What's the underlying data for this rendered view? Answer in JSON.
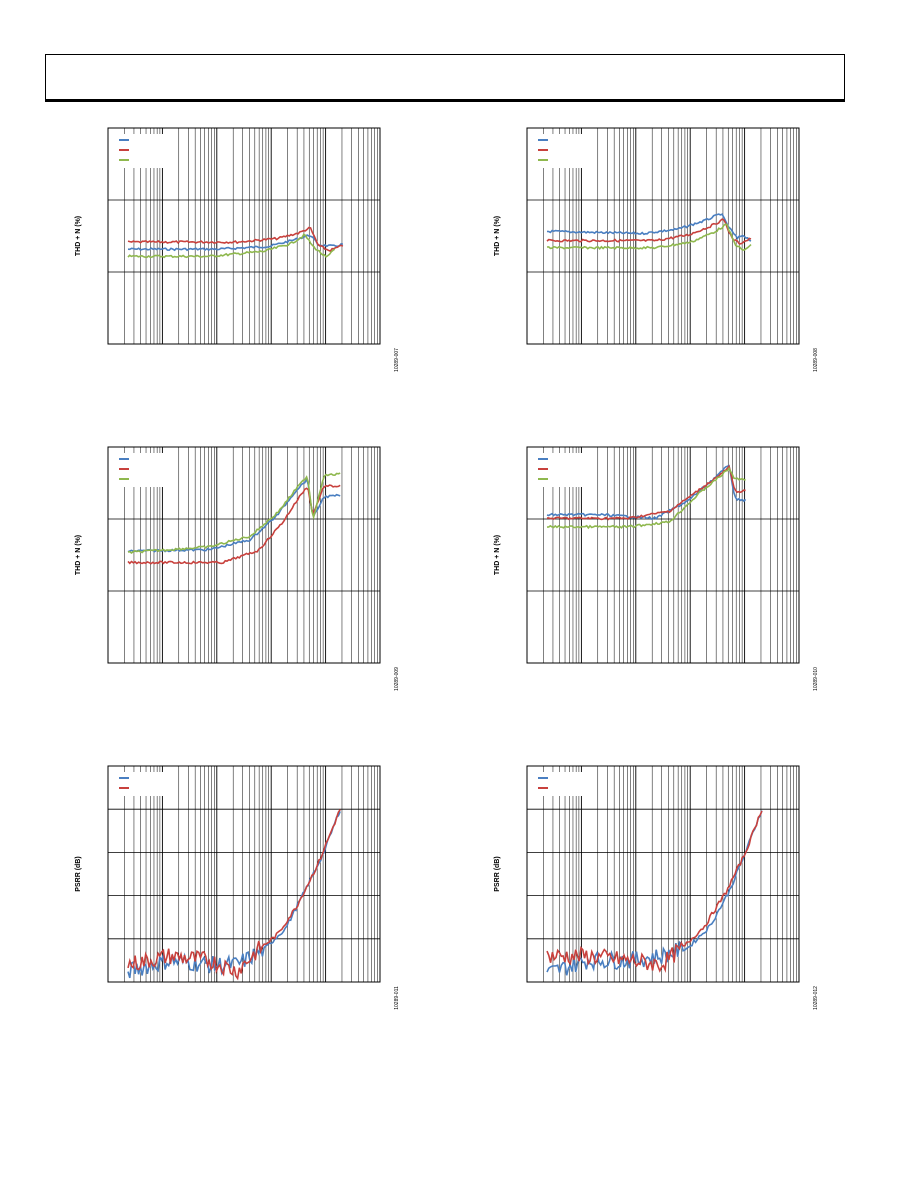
{
  "header": {
    "text": ""
  },
  "colors": {
    "series1": "#4a7fc1",
    "series2": "#c8413d",
    "series3": "#8fb84e",
    "grid": "#000000"
  },
  "chart_data": [
    {
      "id": "fig-007",
      "type": "line",
      "xscale": "log",
      "yscale": "log",
      "ylabel": "THD + N (%)",
      "figure_id": "10289-007",
      "legend": "top-left",
      "series": [
        {
          "values_note": "flat then rising",
          "points": [
            [
              0.0,
              0.7
            ],
            [
              0.33,
              0.7
            ],
            [
              0.52,
              0.66
            ],
            [
              0.62,
              0.56
            ],
            [
              0.67,
              0.5
            ],
            [
              0.7,
              0.64
            ],
            [
              0.76,
              0.66
            ],
            [
              0.79,
              0.63
            ]
          ]
        },
        {
          "points": [
            [
              0.0,
              0.6
            ],
            [
              0.4,
              0.6
            ],
            [
              0.55,
              0.55
            ],
            [
              0.63,
              0.47
            ],
            [
              0.67,
              0.4
            ],
            [
              0.7,
              0.65
            ],
            [
              0.74,
              0.72
            ],
            [
              0.79,
              0.65
            ]
          ]
        },
        {
          "points": [
            [
              0.0,
              0.8
            ],
            [
              0.3,
              0.8
            ],
            [
              0.5,
              0.73
            ],
            [
              0.6,
              0.62
            ],
            [
              0.65,
              0.5
            ],
            [
              0.68,
              0.66
            ],
            [
              0.73,
              0.82
            ],
            [
              0.76,
              0.7
            ]
          ]
        }
      ]
    },
    {
      "id": "fig-008",
      "type": "line",
      "xscale": "log",
      "yscale": "log",
      "ylabel": "THD + N (%)",
      "figure_id": "10289-008",
      "legend": "top-left",
      "series": [
        {
          "points": [
            [
              0.0,
              0.45
            ],
            [
              0.35,
              0.48
            ],
            [
              0.48,
              0.42
            ],
            [
              0.58,
              0.3
            ],
            [
              0.64,
              0.2
            ],
            [
              0.67,
              0.4
            ],
            [
              0.7,
              0.55
            ],
            [
              0.72,
              0.5
            ],
            [
              0.75,
              0.58
            ]
          ]
        },
        {
          "points": [
            [
              0.0,
              0.58
            ],
            [
              0.4,
              0.58
            ],
            [
              0.52,
              0.5
            ],
            [
              0.6,
              0.38
            ],
            [
              0.65,
              0.28
            ],
            [
              0.68,
              0.55
            ],
            [
              0.71,
              0.62
            ],
            [
              0.75,
              0.55
            ]
          ]
        },
        {
          "points": [
            [
              0.0,
              0.68
            ],
            [
              0.4,
              0.68
            ],
            [
              0.53,
              0.6
            ],
            [
              0.62,
              0.45
            ],
            [
              0.66,
              0.35
            ],
            [
              0.69,
              0.62
            ],
            [
              0.72,
              0.72
            ],
            [
              0.75,
              0.65
            ]
          ]
        }
      ]
    },
    {
      "id": "fig-009",
      "type": "line",
      "xscale": "log",
      "yscale": "log",
      "ylabel": "THD + N (%)",
      "figure_id": "10289-009",
      "legend": "top-left",
      "series": [
        {
          "points": [
            [
              0.0,
              0.46
            ],
            [
              0.3,
              0.44
            ],
            [
              0.45,
              0.3
            ],
            [
              0.55,
              -0.05
            ],
            [
              0.62,
              -0.4
            ],
            [
              0.66,
              -0.55
            ],
            [
              0.68,
              0.0
            ],
            [
              0.72,
              -0.3
            ],
            [
              0.78,
              -0.32
            ]
          ]
        },
        {
          "points": [
            [
              0.0,
              0.62
            ],
            [
              0.35,
              0.62
            ],
            [
              0.48,
              0.45
            ],
            [
              0.57,
              0.05
            ],
            [
              0.63,
              -0.3
            ],
            [
              0.66,
              -0.45
            ],
            [
              0.68,
              -0.05
            ],
            [
              0.72,
              -0.45
            ],
            [
              0.78,
              -0.45
            ]
          ]
        },
        {
          "points": [
            [
              0.0,
              0.48
            ],
            [
              0.3,
              0.4
            ],
            [
              0.45,
              0.25
            ],
            [
              0.55,
              -0.08
            ],
            [
              0.62,
              -0.42
            ],
            [
              0.66,
              -0.6
            ],
            [
              0.68,
              0.02
            ],
            [
              0.72,
              -0.6
            ],
            [
              0.78,
              -0.62
            ]
          ]
        }
      ]
    },
    {
      "id": "fig-010",
      "type": "line",
      "xscale": "log",
      "yscale": "log",
      "ylabel": "THD + N (%)",
      "figure_id": "10289-010",
      "legend": "top-left",
      "series": [
        {
          "points": [
            [
              0.0,
              -0.05
            ],
            [
              0.2,
              -0.05
            ],
            [
              0.4,
              0.0
            ],
            [
              0.52,
              -0.25
            ],
            [
              0.62,
              -0.58
            ],
            [
              0.67,
              -0.75
            ],
            [
              0.69,
              -0.28
            ],
            [
              0.73,
              -0.25
            ]
          ]
        },
        {
          "points": [
            [
              0.0,
              0.0
            ],
            [
              0.3,
              0.0
            ],
            [
              0.45,
              -0.1
            ],
            [
              0.56,
              -0.4
            ],
            [
              0.64,
              -0.62
            ],
            [
              0.67,
              -0.72
            ],
            [
              0.69,
              -0.38
            ],
            [
              0.73,
              -0.38
            ]
          ]
        },
        {
          "points": [
            [
              0.0,
              0.12
            ],
            [
              0.3,
              0.12
            ],
            [
              0.45,
              0.05
            ],
            [
              0.56,
              -0.35
            ],
            [
              0.64,
              -0.6
            ],
            [
              0.67,
              -0.7
            ],
            [
              0.69,
              -0.55
            ],
            [
              0.73,
              -0.55
            ]
          ]
        }
      ]
    },
    {
      "id": "fig-011",
      "type": "line",
      "xscale": "log",
      "ylabel": "PSRR (dB)",
      "figure_id": "10289-011",
      "legend": "top-left",
      "series": [
        {
          "points": [
            [
              0.0,
              -95
            ],
            [
              0.15,
              -90
            ],
            [
              0.3,
              -92
            ],
            [
              0.4,
              -92
            ],
            [
              0.5,
              -85
            ],
            [
              0.58,
              -75
            ],
            [
              0.65,
              -58
            ],
            [
              0.72,
              -40
            ],
            [
              0.78,
              -20
            ]
          ]
        },
        {
          "points": [
            [
              0.0,
              -92
            ],
            [
              0.15,
              -88
            ],
            [
              0.3,
              -90
            ],
            [
              0.4,
              -95
            ],
            [
              0.48,
              -85
            ],
            [
              0.55,
              -78
            ],
            [
              0.62,
              -65
            ],
            [
              0.7,
              -45
            ],
            [
              0.78,
              -20
            ]
          ]
        }
      ]
    },
    {
      "id": "fig-012",
      "type": "line",
      "xscale": "log",
      "ylabel": "PSRR (dB)",
      "figure_id": "10289-012",
      "legend": "top-left",
      "series": [
        {
          "points": [
            [
              0.0,
              -96
            ],
            [
              0.15,
              -90
            ],
            [
              0.3,
              -90
            ],
            [
              0.42,
              -88
            ],
            [
              0.52,
              -84
            ],
            [
              0.6,
              -74
            ],
            [
              0.67,
              -58
            ],
            [
              0.73,
              -40
            ],
            [
              0.79,
              -20
            ]
          ]
        },
        {
          "points": [
            [
              0.0,
              -88
            ],
            [
              0.15,
              -88
            ],
            [
              0.3,
              -90
            ],
            [
              0.42,
              -92
            ],
            [
              0.5,
              -84
            ],
            [
              0.58,
              -74
            ],
            [
              0.66,
              -58
            ],
            [
              0.73,
              -40
            ],
            [
              0.79,
              -20
            ]
          ]
        }
      ]
    }
  ]
}
